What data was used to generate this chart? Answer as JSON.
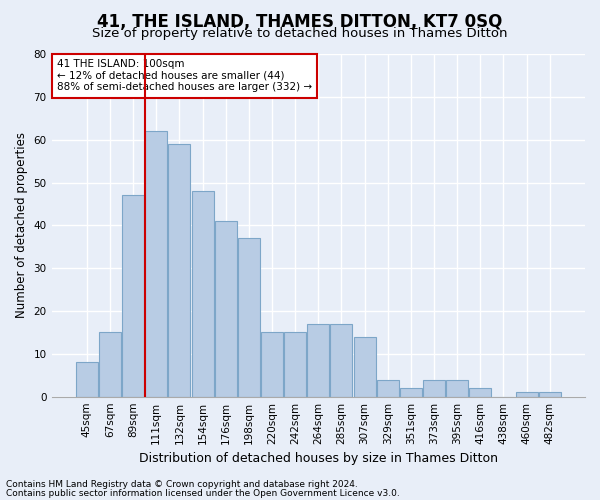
{
  "title": "41, THE ISLAND, THAMES DITTON, KT7 0SQ",
  "subtitle": "Size of property relative to detached houses in Thames Ditton",
  "xlabel": "Distribution of detached houses by size in Thames Ditton",
  "ylabel": "Number of detached properties",
  "categories": [
    "45sqm",
    "67sqm",
    "89sqm",
    "111sqm",
    "132sqm",
    "154sqm",
    "176sqm",
    "198sqm",
    "220sqm",
    "242sqm",
    "264sqm",
    "285sqm",
    "307sqm",
    "329sqm",
    "351sqm",
    "373sqm",
    "395sqm",
    "416sqm",
    "438sqm",
    "460sqm",
    "482sqm"
  ],
  "values": [
    8,
    15,
    47,
    62,
    59,
    48,
    41,
    37,
    15,
    15,
    17,
    17,
    14,
    4,
    2,
    4,
    4,
    2,
    0,
    1,
    1
  ],
  "bar_color": "#b8cce4",
  "bar_edge_color": "#7da6c8",
  "ylim": [
    0,
    80
  ],
  "yticks": [
    0,
    10,
    20,
    30,
    40,
    50,
    60,
    70,
    80
  ],
  "vline_color": "#cc0000",
  "annotation_text": "41 THE ISLAND: 100sqm\n← 12% of detached houses are smaller (44)\n88% of semi-detached houses are larger (332) →",
  "annotation_box_color": "#ffffff",
  "annotation_box_edge": "#cc0000",
  "footer_line1": "Contains HM Land Registry data © Crown copyright and database right 2024.",
  "footer_line2": "Contains public sector information licensed under the Open Government Licence v3.0.",
  "background_color": "#e8eef8",
  "grid_color": "#ffffff",
  "title_fontsize": 12,
  "subtitle_fontsize": 9.5,
  "xlabel_fontsize": 9,
  "ylabel_fontsize": 8.5,
  "tick_fontsize": 7.5,
  "footer_fontsize": 6.5,
  "annotation_fontsize": 7.5
}
